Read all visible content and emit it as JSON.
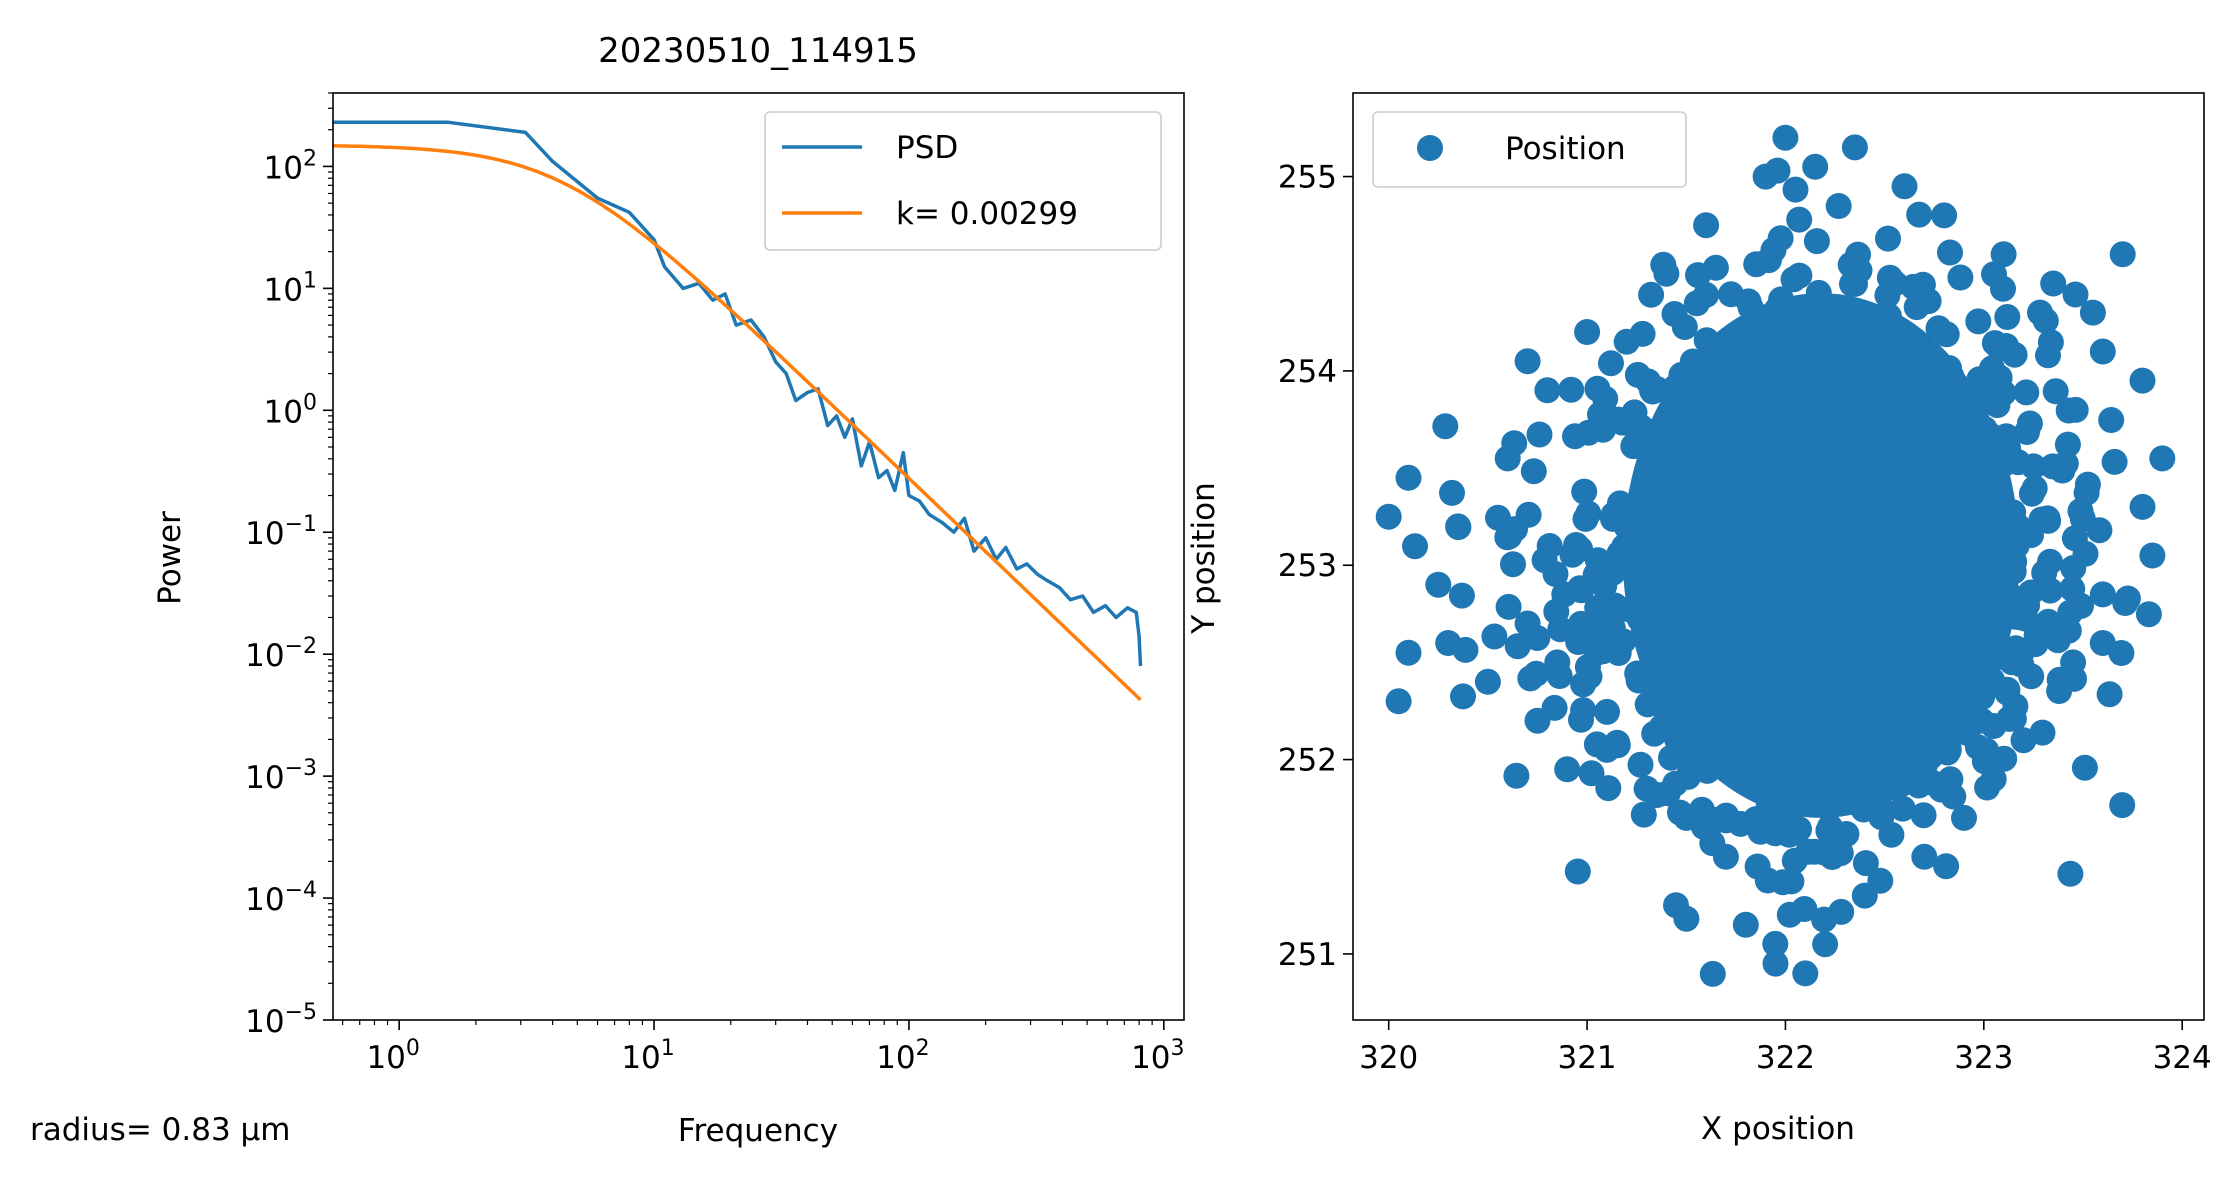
{
  "chart_data": [
    {
      "type": "line",
      "title": "20230510_114915",
      "xlabel": "Frequency",
      "ylabel": "Power",
      "xscale": "log",
      "yscale": "log",
      "xlim": [
        0.55,
        1200
      ],
      "ylim": [
        1e-05,
        400
      ],
      "x_ticks": [
        {
          "base": "10",
          "exp": "0",
          "value": 1
        },
        {
          "base": "10",
          "exp": "1",
          "value": 10
        },
        {
          "base": "10",
          "exp": "2",
          "value": 100
        },
        {
          "base": "10",
          "exp": "3",
          "value": 1000
        }
      ],
      "y_ticks": [
        {
          "base": "10",
          "exp": "−5",
          "value": 1e-05
        },
        {
          "base": "10",
          "exp": "−4",
          "value": 0.0001
        },
        {
          "base": "10",
          "exp": "−3",
          "value": 0.001
        },
        {
          "base": "10",
          "exp": "−2",
          "value": 0.01
        },
        {
          "base": "10",
          "exp": "−1",
          "value": 0.1
        },
        {
          "base": "10",
          "exp": "0",
          "value": 1
        },
        {
          "base": "10",
          "exp": "1",
          "value": 10
        },
        {
          "base": "10",
          "exp": "2",
          "value": 100
        }
      ],
      "legend_position": "top-right",
      "series": [
        {
          "name": "PSD",
          "color": "#1f77b4",
          "x": [
            0.5,
            0.78,
            1.56,
            3.13,
            4.0,
            6.0,
            8.0,
            10.0,
            11.0,
            13.0,
            15.0,
            17.0,
            19.0,
            21.0,
            24.0,
            27.0,
            30.0,
            33.0,
            36.0,
            40.0,
            44.0,
            48.0,
            52.0,
            56.0,
            60.0,
            65.0,
            70.0,
            76.0,
            82.0,
            88.0,
            95.0,
            100.0,
            110.0,
            120.0,
            135.0,
            150.0,
            165.0,
            180.0,
            200.0,
            220.0,
            240.0,
            265.0,
            290.0,
            320.0,
            350.0,
            390.0,
            430.0,
            480.0,
            530.0,
            590.0,
            650.0,
            720.0,
            780.0,
            800.0,
            810.0
          ],
          "y": [
            230,
            230,
            230,
            190,
            110,
            55,
            42,
            25,
            15,
            10,
            11,
            8,
            9,
            5,
            5.5,
            4,
            2.5,
            2.0,
            1.2,
            1.4,
            1.5,
            0.75,
            0.9,
            0.6,
            0.85,
            0.35,
            0.55,
            0.28,
            0.32,
            0.22,
            0.45,
            0.2,
            0.18,
            0.14,
            0.12,
            0.1,
            0.13,
            0.07,
            0.09,
            0.06,
            0.075,
            0.05,
            0.055,
            0.045,
            0.04,
            0.035,
            0.028,
            0.03,
            0.022,
            0.025,
            0.02,
            0.024,
            0.022,
            0.014,
            0.008
          ]
        },
        {
          "name": "k= 0.00299",
          "color": "#ff7f0e",
          "fc": 4.3,
          "p0": 150,
          "x_range": [
            0.55,
            810
          ]
        }
      ]
    },
    {
      "type": "scatter",
      "xlabel": "X position",
      "ylabel": "Y position",
      "xlim": [
        319.82,
        324.11
      ],
      "ylim": [
        250.66,
        255.43
      ],
      "x_ticks": [
        "320",
        "321",
        "322",
        "323",
        "324"
      ],
      "y_ticks": [
        "251",
        "252",
        "253",
        "254",
        "255"
      ],
      "legend_position": "top-left",
      "series": [
        {
          "name": "Position",
          "color": "#1f77b4",
          "center": [
            322.2,
            253.0
          ],
          "outline_points": [
            [
              320.0,
              253.25
            ],
            [
              320.1,
              253.45
            ],
            [
              320.35,
              253.2
            ],
            [
              320.25,
              252.9
            ],
            [
              320.1,
              252.55
            ],
            [
              320.05,
              252.3
            ],
            [
              320.3,
              252.6
            ],
            [
              320.5,
              252.4
            ],
            [
              320.6,
              253.55
            ],
            [
              320.7,
              254.05
            ],
            [
              320.8,
              253.9
            ],
            [
              321.0,
              254.2
            ],
            [
              321.2,
              254.15
            ],
            [
              321.4,
              254.5
            ],
            [
              321.6,
              254.75
            ],
            [
              321.9,
              255.0
            ],
            [
              322.0,
              255.2
            ],
            [
              322.15,
              255.05
            ],
            [
              322.35,
              255.15
            ],
            [
              322.6,
              254.95
            ],
            [
              322.8,
              254.8
            ],
            [
              323.1,
              254.6
            ],
            [
              323.35,
              254.45
            ],
            [
              323.55,
              254.3
            ],
            [
              323.7,
              254.6
            ],
            [
              323.6,
              254.1
            ],
            [
              323.8,
              253.95
            ],
            [
              323.9,
              253.55
            ],
            [
              323.8,
              253.3
            ],
            [
              323.85,
              253.05
            ],
            [
              323.6,
              252.85
            ],
            [
              323.6,
              252.6
            ],
            [
              323.45,
              252.5
            ],
            [
              323.2,
              252.1
            ],
            [
              323.05,
              251.9
            ],
            [
              322.9,
              251.7
            ],
            [
              322.7,
              251.5
            ],
            [
              322.4,
              251.3
            ],
            [
              322.2,
              251.05
            ],
            [
              322.1,
              250.9
            ],
            [
              321.95,
              250.95
            ],
            [
              321.8,
              251.15
            ],
            [
              321.7,
              251.5
            ],
            [
              321.5,
              251.7
            ],
            [
              321.3,
              251.85
            ],
            [
              321.1,
              252.05
            ],
            [
              320.9,
              251.95
            ],
            [
              320.75,
              252.2
            ],
            [
              320.85,
              252.5
            ],
            [
              320.7,
              252.7
            ]
          ]
        }
      ]
    }
  ],
  "annotation": "radius= 0.83 µm"
}
